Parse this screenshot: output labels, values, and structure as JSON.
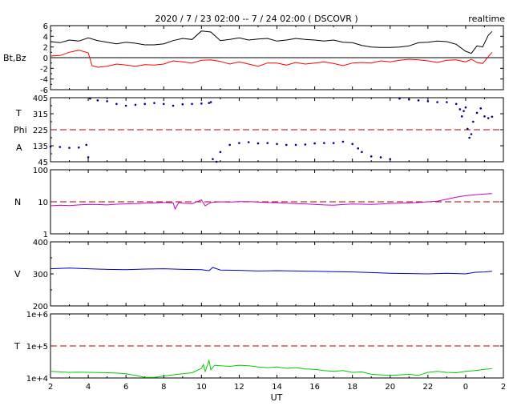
{
  "header": {
    "title": "2020 / 7 / 23   02:00 --  7 / 24   02:00 ( DSCOVR )",
    "status": "realtime"
  },
  "x_axis": {
    "label": "UT",
    "tick_labels": [
      "2",
      "4",
      "6",
      "8",
      "10",
      "12",
      "14",
      "16",
      "18",
      "20",
      "22",
      "0",
      "2"
    ],
    "range_hours": [
      2,
      26
    ]
  },
  "chart_data": [
    {
      "type": "line",
      "id": "magnetic-field",
      "ylabel": "Bt,Bz",
      "ylim": [
        -6,
        6
      ],
      "yticks": [
        6,
        4,
        2,
        0,
        -2,
        -4,
        -6
      ],
      "zero_line": 0,
      "series": [
        {
          "name": "Bt",
          "color": "#000000",
          "x": [
            2.0,
            2.5,
            3.0,
            3.5,
            4.0,
            4.5,
            5.0,
            5.5,
            6.0,
            6.5,
            7.0,
            7.5,
            8.0,
            8.5,
            9.0,
            9.5,
            10.0,
            10.5,
            11.0,
            11.5,
            12.0,
            12.5,
            13.0,
            13.5,
            14.0,
            14.5,
            15.0,
            15.5,
            16.0,
            16.5,
            17.0,
            17.5,
            18.0,
            18.5,
            19.0,
            19.5,
            20.0,
            20.5,
            21.0,
            21.5,
            22.0,
            22.5,
            23.0,
            23.5,
            24.0,
            24.3,
            24.6,
            24.9,
            25.2,
            25.4
          ],
          "y": [
            3.0,
            2.8,
            3.3,
            3.1,
            3.7,
            3.2,
            2.9,
            2.6,
            2.9,
            2.7,
            2.4,
            2.4,
            2.6,
            3.2,
            3.6,
            3.4,
            5.0,
            4.8,
            3.2,
            3.4,
            3.7,
            3.3,
            3.5,
            3.6,
            3.1,
            3.3,
            3.6,
            3.4,
            3.3,
            3.1,
            3.3,
            2.9,
            2.8,
            2.3,
            2.0,
            1.9,
            1.9,
            2.0,
            2.2,
            2.8,
            2.9,
            3.1,
            3.0,
            2.5,
            1.2,
            0.8,
            2.2,
            2.0,
            4.2,
            4.9
          ]
        },
        {
          "name": "Bz",
          "color": "#ff0000",
          "x": [
            2.0,
            2.5,
            3.0,
            3.5,
            4.0,
            4.2,
            4.5,
            5.0,
            5.5,
            6.0,
            6.5,
            7.0,
            7.5,
            8.0,
            8.5,
            9.0,
            9.5,
            10.0,
            10.5,
            11.0,
            11.5,
            12.0,
            12.5,
            13.0,
            13.5,
            14.0,
            14.5,
            15.0,
            15.5,
            16.0,
            16.5,
            17.0,
            17.5,
            18.0,
            18.5,
            19.0,
            19.5,
            20.0,
            20.5,
            21.0,
            21.5,
            22.0,
            22.5,
            23.0,
            23.5,
            24.0,
            24.3,
            24.6,
            24.9,
            25.2,
            25.4
          ],
          "y": [
            0.3,
            0.4,
            1.0,
            1.4,
            0.9,
            -1.5,
            -1.8,
            -1.6,
            -1.2,
            -1.4,
            -1.6,
            -1.3,
            -1.4,
            -1.2,
            -0.6,
            -0.8,
            -1.0,
            -0.5,
            -0.4,
            -0.7,
            -1.2,
            -0.8,
            -1.2,
            -1.6,
            -1.0,
            -1.0,
            -1.4,
            -0.9,
            -1.2,
            -1.0,
            -0.8,
            -1.1,
            -1.5,
            -1.0,
            -0.9,
            -1.0,
            -0.6,
            -0.8,
            -0.5,
            -0.3,
            -0.4,
            -0.6,
            -0.9,
            -0.5,
            -0.4,
            -0.8,
            -0.3,
            -0.9,
            -1.1,
            0.2,
            1.0
          ]
        }
      ]
    },
    {
      "type": "scatter",
      "id": "field-angle",
      "ylabel": "T",
      "ylabel_lines": [
        "T",
        "Phi",
        "A"
      ],
      "ylim": [
        45,
        405
      ],
      "yticks": [
        405,
        315,
        225,
        135,
        45
      ],
      "reference_line": 225,
      "series": [
        {
          "name": "Phi",
          "color": "#00008b",
          "x": [
            2.0,
            2.5,
            3.0,
            3.5,
            3.9,
            4.0,
            4.1,
            4.5,
            5.0,
            5.5,
            6.0,
            6.5,
            7.0,
            7.5,
            8.0,
            8.5,
            9.0,
            9.5,
            10.0,
            10.4,
            10.5,
            10.6,
            10.8,
            11.0,
            11.5,
            12.0,
            12.5,
            13.0,
            13.5,
            14.0,
            14.5,
            15.0,
            15.5,
            16.0,
            16.5,
            17.0,
            17.5,
            18.0,
            18.3,
            18.5,
            19.0,
            19.5,
            20.0,
            20.5,
            21.0,
            21.5,
            22.0,
            22.5,
            23.0,
            23.5,
            23.7,
            23.8,
            23.9,
            24.0,
            24.1,
            24.2,
            24.3,
            24.4,
            24.6,
            24.8,
            25.0,
            25.2,
            25.4
          ],
          "y": [
            130,
            128,
            123,
            125,
            140,
            70,
            400,
            390,
            385,
            370,
            360,
            365,
            370,
            375,
            370,
            360,
            368,
            370,
            372,
            375,
            380,
            60,
            45,
            100,
            140,
            150,
            155,
            148,
            150,
            145,
            140,
            140,
            142,
            148,
            150,
            150,
            158,
            145,
            120,
            100,
            75,
            70,
            60,
            400,
            395,
            390,
            385,
            380,
            380,
            370,
            340,
            300,
            330,
            350,
            230,
            180,
            200,
            270,
            320,
            345,
            300,
            290,
            298
          ]
        }
      ]
    },
    {
      "type": "line",
      "id": "density",
      "ylabel": "N",
      "yscale": "log",
      "ylim": [
        1,
        100
      ],
      "yticks": [
        100,
        10,
        1
      ],
      "reference_line": 10,
      "series": [
        {
          "name": "N",
          "color": "#cc00cc",
          "x": [
            2.0,
            2.5,
            3.0,
            3.5,
            4.0,
            4.5,
            5.0,
            5.5,
            6.0,
            6.5,
            7.0,
            7.5,
            8.0,
            8.5,
            8.6,
            8.8,
            9.0,
            9.5,
            10.0,
            10.2,
            10.5,
            11.0,
            11.5,
            12.0,
            12.5,
            13.0,
            13.5,
            14.0,
            14.5,
            15.0,
            15.5,
            16.0,
            16.5,
            17.0,
            17.5,
            18.0,
            18.5,
            19.0,
            19.5,
            20.0,
            20.5,
            21.0,
            21.5,
            22.0,
            22.5,
            23.0,
            23.5,
            24.0,
            24.5,
            25.0,
            25.4
          ],
          "y": [
            7.5,
            7.8,
            7.6,
            8.0,
            8.3,
            8.2,
            8.0,
            8.4,
            8.6,
            8.8,
            9.0,
            9.2,
            9.5,
            9.2,
            6.0,
            9.5,
            9.0,
            8.7,
            11.5,
            7.5,
            9.5,
            10.0,
            9.8,
            10.2,
            10.1,
            9.8,
            9.5,
            9.4,
            9.0,
            8.8,
            8.6,
            8.3,
            8.0,
            7.8,
            8.2,
            8.5,
            8.4,
            8.3,
            8.5,
            8.9,
            9.0,
            9.2,
            9.5,
            10.0,
            10.5,
            12.0,
            14.0,
            15.5,
            16.5,
            17.5,
            18.0
          ]
        }
      ]
    },
    {
      "type": "line",
      "id": "velocity",
      "ylabel": "V",
      "ylim": [
        200,
        400
      ],
      "yticks": [
        400,
        300,
        200
      ],
      "series": [
        {
          "name": "V",
          "color": "#0000cc",
          "x": [
            2.0,
            3.0,
            4.0,
            5.0,
            6.0,
            7.0,
            8.0,
            9.0,
            10.0,
            10.4,
            10.6,
            11.0,
            12.0,
            13.0,
            14.0,
            15.0,
            16.0,
            17.0,
            18.0,
            19.0,
            20.0,
            21.0,
            22.0,
            23.0,
            24.0,
            24.5,
            25.0,
            25.4
          ],
          "y": [
            316,
            318,
            316,
            314,
            313,
            315,
            316,
            314,
            313,
            310,
            320,
            312,
            311,
            309,
            310,
            309,
            308,
            307,
            306,
            304,
            302,
            301,
            300,
            302,
            300,
            305,
            306,
            308
          ]
        }
      ]
    },
    {
      "type": "line",
      "id": "temperature",
      "ylabel": "T",
      "yscale": "log",
      "ylim": [
        10000,
        1000000
      ],
      "yticks": [
        "1e+6",
        "1e+5",
        "1e+4"
      ],
      "reference_line": 100000,
      "series": [
        {
          "name": "T",
          "color": "#00cc00",
          "x": [
            2.0,
            2.5,
            3.0,
            3.5,
            4.0,
            4.5,
            5.0,
            5.5,
            6.0,
            6.5,
            7.0,
            7.5,
            8.0,
            8.5,
            9.0,
            9.5,
            10.0,
            10.1,
            10.2,
            10.4,
            10.5,
            10.7,
            11.0,
            11.5,
            12.0,
            12.5,
            13.0,
            13.5,
            14.0,
            14.5,
            15.0,
            15.5,
            16.0,
            16.5,
            17.0,
            17.5,
            18.0,
            18.5,
            19.0,
            19.5,
            20.0,
            20.5,
            21.0,
            21.5,
            22.0,
            22.5,
            23.0,
            23.5,
            24.0,
            24.5,
            25.0,
            25.4
          ],
          "y": [
            16000,
            15500,
            15000,
            15200,
            15000,
            14800,
            14500,
            14200,
            13500,
            12000,
            10500,
            10500,
            11500,
            12500,
            13500,
            14500,
            20000,
            26000,
            16000,
            35000,
            18000,
            25000,
            24000,
            23000,
            25000,
            24000,
            22000,
            21000,
            22000,
            20000,
            21000,
            19000,
            18500,
            17000,
            16000,
            17000,
            15000,
            15500,
            13000,
            12500,
            12000,
            12500,
            13000,
            12000,
            15000,
            16000,
            15000,
            14500,
            16000,
            17000,
            18500,
            19500
          ]
        }
      ]
    }
  ]
}
